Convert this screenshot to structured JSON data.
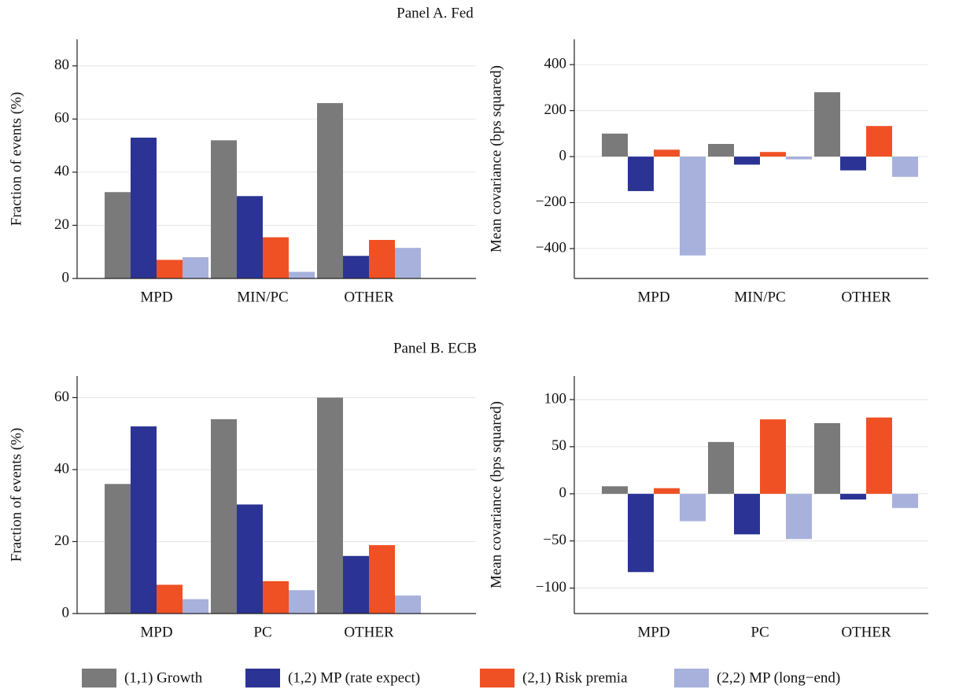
{
  "chart_data": [
    {
      "type": "bar",
      "title": "Panel A. Fed",
      "ylabel": "Fraction of events (%)",
      "categories": [
        "MPD",
        "MIN/PC",
        "OTHER"
      ],
      "series": [
        {
          "values": [
            32.5,
            52,
            66
          ]
        },
        {
          "values": [
            53,
            31,
            8.5
          ]
        },
        {
          "values": [
            7,
            15.5,
            14.5
          ]
        },
        {
          "values": [
            8,
            2.5,
            11.5
          ]
        }
      ],
      "ylim": [
        0,
        90
      ],
      "yticks": [
        0,
        20,
        40,
        60,
        80
      ],
      "grid": true
    },
    {
      "type": "bar",
      "ylabel": "Mean covariance (bps squared)",
      "categories": [
        "MPD",
        "MIN/PC",
        "OTHER"
      ],
      "series": [
        {
          "values": [
            100,
            55,
            280
          ]
        },
        {
          "values": [
            -150,
            -35,
            -60
          ]
        },
        {
          "values": [
            30,
            20,
            133
          ]
        },
        {
          "values": [
            -430,
            -12,
            -88
          ]
        }
      ],
      "ylim": [
        -530,
        510
      ],
      "yticks": [
        {
          "value": -400,
          "label": "−400"
        },
        {
          "value": -200,
          "label": "−200"
        },
        0,
        200,
        400
      ],
      "grid": true
    },
    {
      "type": "bar",
      "title": "Panel B. ECB",
      "ylabel": "Fraction of events (%)",
      "categories": [
        "MPD",
        "PC",
        "OTHER"
      ],
      "series": [
        {
          "values": [
            36,
            54,
            60
          ]
        },
        {
          "values": [
            52,
            30.3,
            16
          ]
        },
        {
          "values": [
            8,
            9,
            19
          ]
        },
        {
          "values": [
            4,
            6.5,
            5
          ]
        }
      ],
      "ylim": [
        0,
        66
      ],
      "yticks": [
        0,
        20,
        40,
        60
      ],
      "grid": true
    },
    {
      "type": "bar",
      "ylabel": "Mean covariance (bps squared)",
      "categories": [
        "MPD",
        "PC",
        "OTHER"
      ],
      "series": [
        {
          "values": [
            8,
            55,
            75
          ]
        },
        {
          "values": [
            -83,
            -43,
            -6
          ]
        },
        {
          "values": [
            6,
            79,
            81
          ]
        },
        {
          "values": [
            -29,
            -48,
            -15
          ]
        }
      ],
      "ylim": [
        -127,
        125
      ],
      "yticks": [
        {
          "value": -100,
          "label": "−100"
        },
        {
          "value": -50,
          "label": "−50"
        },
        0,
        50,
        100
      ],
      "grid": true
    }
  ],
  "legend": {
    "series": [
      {
        "name": "(1,1) Growth",
        "color": "#7a7a7a"
      },
      {
        "name": "(1,2) MP (rate expect)",
        "color": "#2b3494"
      },
      {
        "name": "(2,1) Risk premia",
        "color": "#ef5124"
      },
      {
        "name": "(2,2) MP (long−end)",
        "color": "#a7b1db"
      }
    ]
  }
}
